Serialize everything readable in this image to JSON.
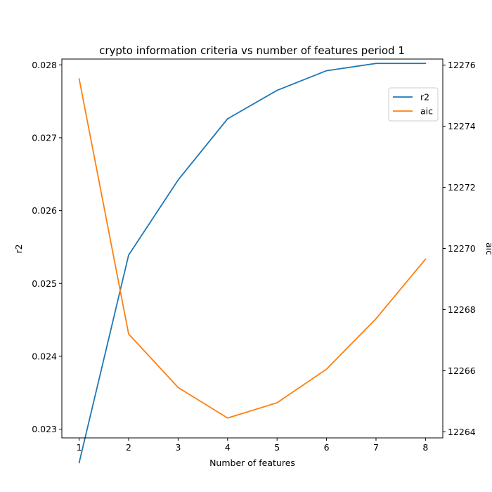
{
  "chart_data": {
    "type": "line",
    "title": "crypto information criteria vs number of features period 1",
    "xlabel": "Number of features",
    "ylabel_left": "r2",
    "ylabel_right": "aic",
    "x": [
      1,
      2,
      3,
      4,
      5,
      6,
      7,
      8
    ],
    "xlim": [
      0.65,
      8.35
    ],
    "ylim_left": [
      0.02288,
      0.02808
    ],
    "ylim_right": [
      12263.8,
      12276.2
    ],
    "xticks": [
      "1",
      "2",
      "3",
      "4",
      "5",
      "6",
      "7",
      "8"
    ],
    "yticks_left": [
      "0.023",
      "0.024",
      "0.025",
      "0.026",
      "0.027",
      "0.028"
    ],
    "yticks_left_values": [
      0.023,
      0.024,
      0.025,
      0.026,
      0.027,
      0.028
    ],
    "yticks_right": [
      "12264",
      "12266",
      "12268",
      "12270",
      "12272",
      "12274",
      "12276"
    ],
    "yticks_right_values": [
      12264,
      12266,
      12268,
      12270,
      12272,
      12274,
      12276
    ],
    "grid": false,
    "legend_position": "upper-right",
    "series": [
      {
        "name": "r2",
        "axis": "left",
        "color": "#1f77b4",
        "values": [
          0.02254,
          0.02539,
          0.02642,
          0.02726,
          0.02765,
          0.02792,
          0.02802,
          0.02802
        ]
      },
      {
        "name": "aic",
        "axis": "right",
        "color": "#ff7f0e",
        "values": [
          12275.55,
          12267.2,
          12265.45,
          12264.45,
          12264.95,
          12266.05,
          12267.7,
          12269.65
        ]
      }
    ]
  }
}
